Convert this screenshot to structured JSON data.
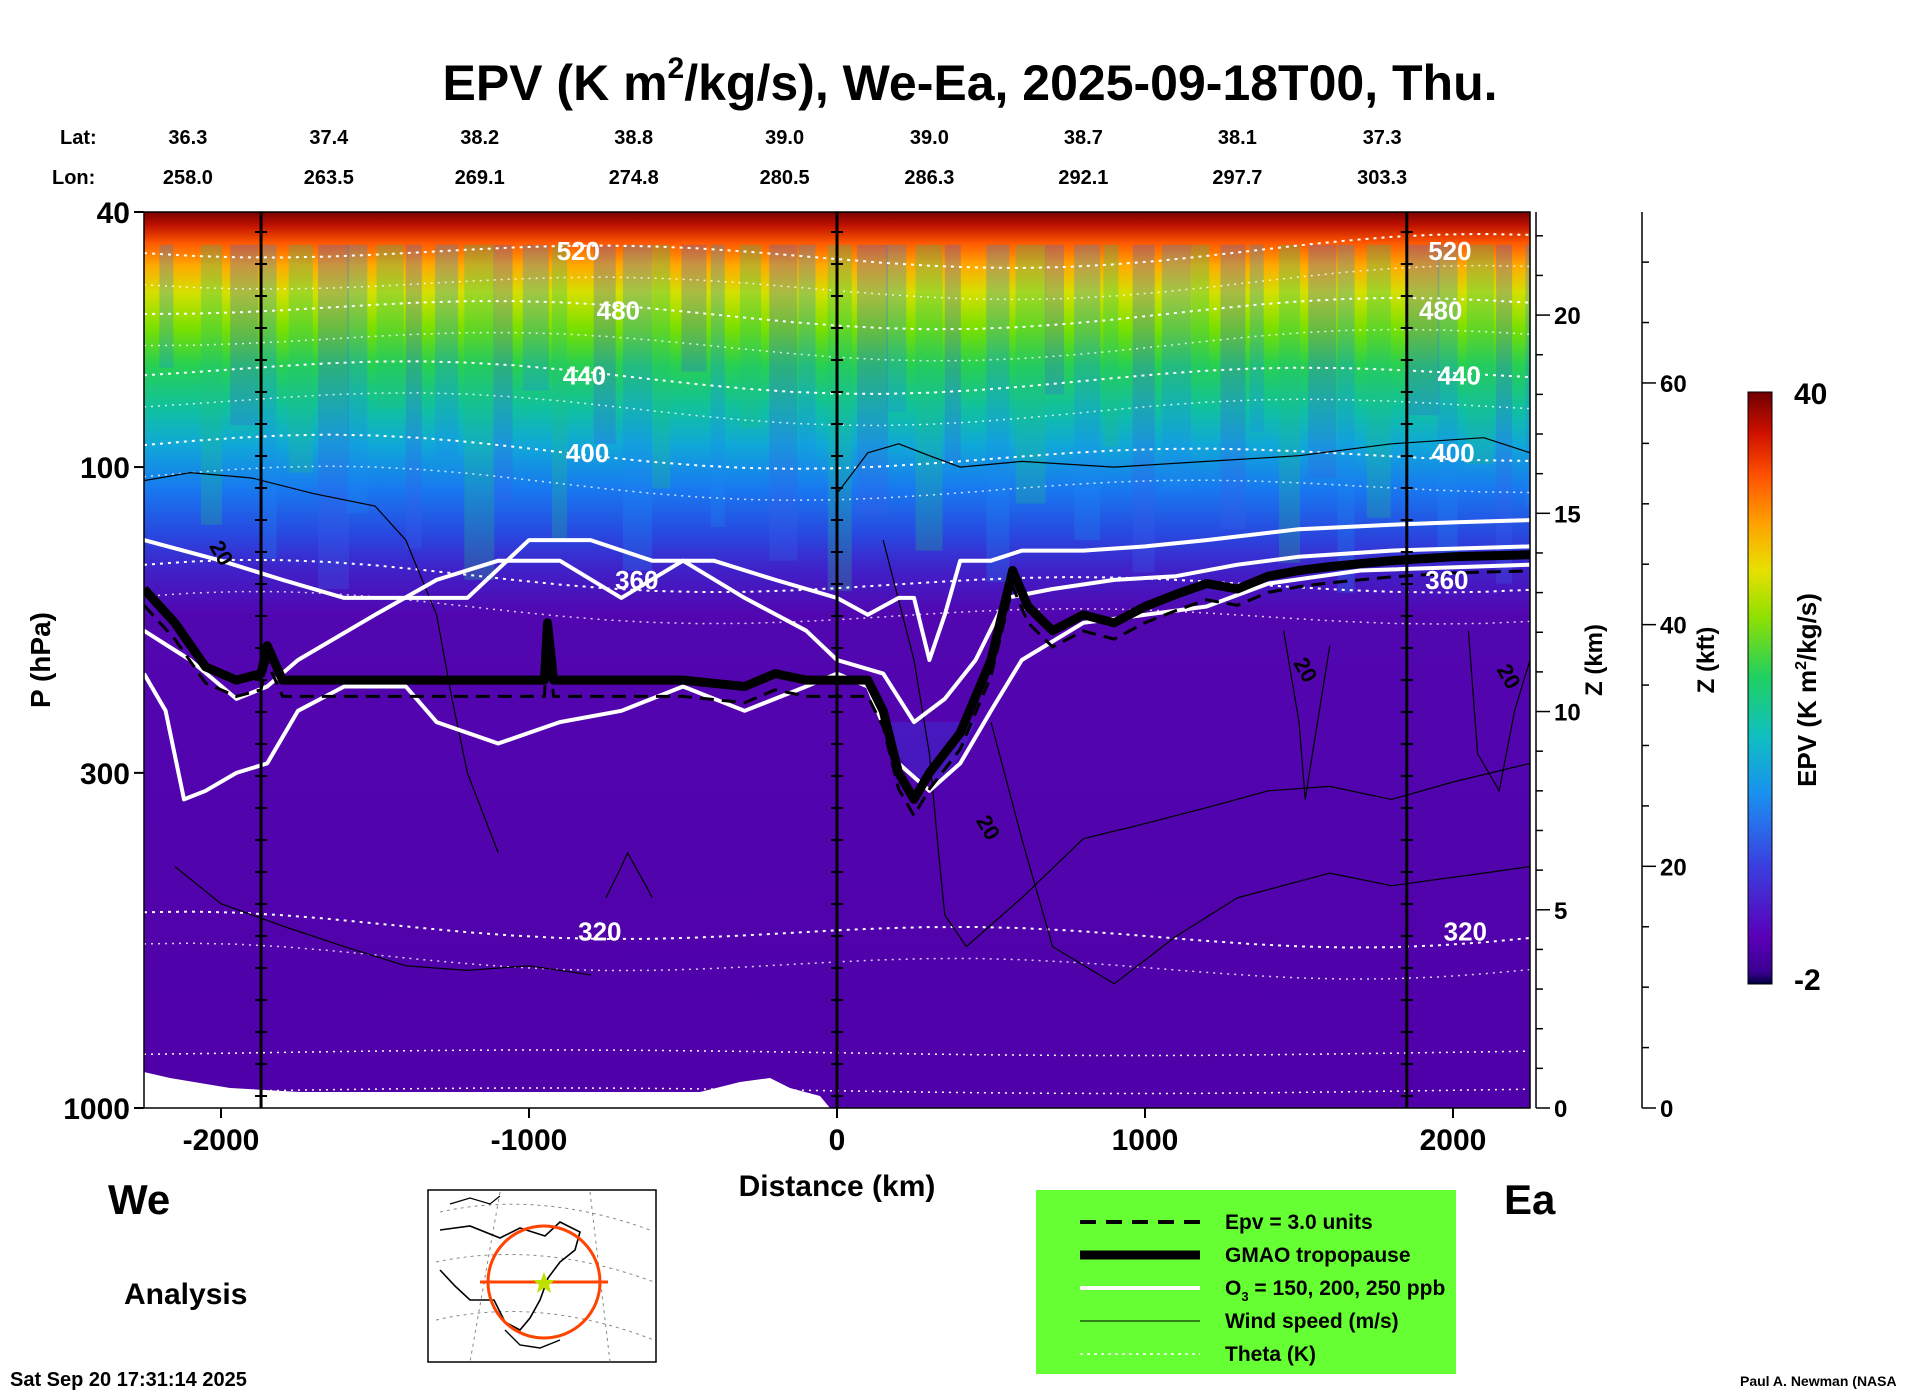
{
  "chart_data": {
    "type": "heatmap",
    "title_main": "EPV (K m",
    "title_sup": "2",
    "title_rest": "/kg/s), We-Ea, 2025-09-18T00, Thu.",
    "lat_label": "Lat:",
    "lon_label": "Lon:",
    "lat_values": [
      "36.3",
      "37.4",
      "38.2",
      "38.8",
      "39.0",
      "39.0",
      "38.7",
      "38.1",
      "37.3"
    ],
    "lon_values": [
      "258.0",
      "263.5",
      "269.1",
      "274.8",
      "280.5",
      "286.3",
      "292.1",
      "297.7",
      "303.3"
    ],
    "xlabel": "Distance (km)",
    "xlim": [
      -2250,
      2250
    ],
    "xticks": [
      -2000,
      -1000,
      0,
      1000,
      2000
    ],
    "xtick_labels": [
      "-2000",
      "-1000",
      "0",
      "1000",
      "2000"
    ],
    "ylabel": "P (hPa)",
    "ylim_hpa": [
      1000,
      40
    ],
    "yticks_hpa": [
      40,
      100,
      300,
      1000
    ],
    "ytick_labels": [
      "40",
      "100",
      "300",
      "1000"
    ],
    "z_km_label": "Z (km)",
    "z_km_ticks": [
      0,
      5,
      10,
      15,
      20
    ],
    "z_km_tick_labels": [
      "0",
      "5",
      "10",
      "15",
      "20"
    ],
    "z_kft_label": "Z (kft)",
    "z_kft_ticks": [
      0,
      20,
      40,
      60
    ],
    "z_kft_tick_labels": [
      "0",
      "20",
      "40",
      "60"
    ],
    "vertical_markers_km": [
      -1870,
      0,
      1850
    ],
    "colorbar": {
      "label": "EPV (K m",
      "label_sup": "2",
      "label_rest": "/kg/s)",
      "min_label": "-2",
      "max_label": "40",
      "min": -2,
      "max": 40
    },
    "theta_contours": [
      {
        "label": "520",
        "p": 46
      },
      {
        "label": "480",
        "p": 57
      },
      {
        "label": "440",
        "p": 72
      },
      {
        "label": "400",
        "p": 95
      },
      {
        "label": "360",
        "p": 150
      },
      {
        "label": "320",
        "p": 530
      }
    ],
    "theta_labels_left": [
      {
        "text": "520",
        "x": -840
      },
      {
        "text": "480",
        "x": -710
      },
      {
        "text": "440",
        "x": -820
      },
      {
        "text": "400",
        "x": -810
      },
      {
        "text": "360",
        "x": -650
      },
      {
        "text": "320",
        "x": -770
      }
    ],
    "theta_labels_right": [
      {
        "text": "520",
        "x": 1990
      },
      {
        "text": "480",
        "x": 1960
      },
      {
        "text": "440",
        "x": 2020
      },
      {
        "text": "400",
        "x": 2000
      },
      {
        "text": "360",
        "x": 1980
      },
      {
        "text": "320",
        "x": 2040
      }
    ],
    "wind_labels": [
      {
        "text": "20",
        "x": -2020,
        "p": 138
      },
      {
        "text": "20",
        "x": 1500,
        "p": 210
      },
      {
        "text": "20",
        "x": 2160,
        "p": 215
      },
      {
        "text": "20",
        "x": 470,
        "p": 370
      }
    ],
    "tropopause_hpa": [
      [
        -2250,
        155
      ],
      [
        -2150,
        175
      ],
      [
        -2050,
        205
      ],
      [
        -1950,
        215
      ],
      [
        -1870,
        210
      ],
      [
        -1850,
        190
      ],
      [
        -1800,
        215
      ],
      [
        -1600,
        215
      ],
      [
        -1400,
        215
      ],
      [
        -1200,
        215
      ],
      [
        -950,
        215
      ],
      [
        -940,
        175
      ],
      [
        -920,
        215
      ],
      [
        -700,
        215
      ],
      [
        -500,
        215
      ],
      [
        -300,
        220
      ],
      [
        -200,
        210
      ],
      [
        -100,
        215
      ],
      [
        0,
        215
      ],
      [
        100,
        215
      ],
      [
        150,
        240
      ],
      [
        200,
        300
      ],
      [
        250,
        330
      ],
      [
        300,
        300
      ],
      [
        400,
        260
      ],
      [
        500,
        200
      ],
      [
        570,
        145
      ],
      [
        620,
        165
      ],
      [
        700,
        180
      ],
      [
        800,
        170
      ],
      [
        900,
        175
      ],
      [
        1000,
        165
      ],
      [
        1100,
        158
      ],
      [
        1200,
        152
      ],
      [
        1300,
        155
      ],
      [
        1400,
        148
      ],
      [
        1500,
        145
      ],
      [
        1600,
        143
      ],
      [
        1800,
        140
      ],
      [
        2000,
        138
      ],
      [
        2250,
        137
      ]
    ],
    "ozone_150_hpa": [
      [
        -2250,
        130
      ],
      [
        -2000,
        140
      ],
      [
        -1800,
        150
      ],
      [
        -1600,
        160
      ],
      [
        -1400,
        160
      ],
      [
        -1200,
        160
      ],
      [
        -1000,
        130
      ],
      [
        -800,
        130
      ],
      [
        -600,
        140
      ],
      [
        -400,
        140
      ],
      [
        -200,
        150
      ],
      [
        0,
        160
      ],
      [
        100,
        170
      ],
      [
        200,
        160
      ],
      [
        250,
        160
      ],
      [
        300,
        200
      ],
      [
        350,
        170
      ],
      [
        400,
        140
      ],
      [
        500,
        140
      ],
      [
        600,
        135
      ],
      [
        800,
        135
      ],
      [
        1000,
        133
      ],
      [
        1200,
        130
      ],
      [
        1500,
        125
      ],
      [
        1800,
        123
      ],
      [
        2000,
        122
      ],
      [
        2250,
        121
      ]
    ],
    "ozone_200_hpa": [
      [
        -2250,
        180
      ],
      [
        -2100,
        200
      ],
      [
        -1950,
        230
      ],
      [
        -1850,
        220
      ],
      [
        -1750,
        200
      ],
      [
        -1500,
        170
      ],
      [
        -1300,
        150
      ],
      [
        -1100,
        140
      ],
      [
        -900,
        140
      ],
      [
        -700,
        160
      ],
      [
        -500,
        140
      ],
      [
        -300,
        160
      ],
      [
        -100,
        180
      ],
      [
        0,
        200
      ],
      [
        150,
        210
      ],
      [
        250,
        250
      ],
      [
        350,
        230
      ],
      [
        450,
        200
      ],
      [
        550,
        160
      ],
      [
        700,
        155
      ],
      [
        900,
        150
      ],
      [
        1100,
        148
      ],
      [
        1300,
        142
      ],
      [
        1500,
        138
      ],
      [
        1800,
        135
      ],
      [
        2250,
        133
      ]
    ],
    "ozone_250_hpa": [
      [
        -2250,
        210
      ],
      [
        -2180,
        240
      ],
      [
        -2120,
        330
      ],
      [
        -2050,
        320
      ],
      [
        -1950,
        300
      ],
      [
        -1850,
        290
      ],
      [
        -1750,
        240
      ],
      [
        -1600,
        220
      ],
      [
        -1400,
        220
      ],
      [
        -1300,
        250
      ],
      [
        -1100,
        270
      ],
      [
        -900,
        250
      ],
      [
        -700,
        240
      ],
      [
        -500,
        220
      ],
      [
        -300,
        240
      ],
      [
        -100,
        220
      ],
      [
        0,
        210
      ],
      [
        100,
        220
      ],
      [
        200,
        290
      ],
      [
        300,
        320
      ],
      [
        400,
        290
      ],
      [
        500,
        240
      ],
      [
        600,
        200
      ],
      [
        800,
        175
      ],
      [
        1000,
        170
      ],
      [
        1200,
        165
      ],
      [
        1400,
        152
      ],
      [
        1700,
        145
      ],
      [
        2250,
        142
      ]
    ],
    "legend": {
      "items": [
        {
          "label": "Epv = 3.0 units"
        },
        {
          "label": "GMAO tropopause"
        },
        {
          "label": "O",
          "label_sub": "3",
          "label_rest": " = 150, 200, 250 ppb"
        },
        {
          "label": "Wind speed (m/s)"
        },
        {
          "label": "Theta (K)"
        }
      ],
      "background": "#66ff33",
      "placement": "bottom-right"
    },
    "side_label_left": "We",
    "side_label_right": "Ea",
    "analysis_label": "Analysis",
    "timestamp": "Sat Sep 20 17:31:14 2025",
    "credit": "Paul A. Newman (NASA",
    "colors": {
      "stratosphere_top": "#7a0000",
      "tropopause_line": "#000000",
      "ozone_line": "#ffffff",
      "troposphere": "#5200a8",
      "map_track": "#ff4400"
    }
  }
}
